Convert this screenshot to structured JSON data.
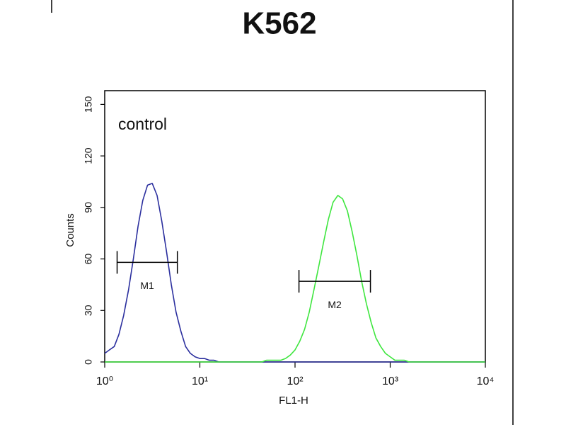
{
  "chart_data": {
    "type": "line",
    "title": "K562",
    "annotation": "control",
    "xlabel": "FL1-H",
    "ylabel": "Counts",
    "xscale": "log",
    "xlim": [
      1,
      10000
    ],
    "xticks": [
      {
        "value": 1,
        "label": "10⁰"
      },
      {
        "value": 10,
        "label": "10¹"
      },
      {
        "value": 100,
        "label": "10²"
      },
      {
        "value": 1000,
        "label": "10³"
      },
      {
        "value": 10000,
        "label": "10⁴"
      }
    ],
    "ylim": [
      0,
      158
    ],
    "yticks": [
      0,
      30,
      60,
      90,
      120,
      150
    ],
    "x": [
      1,
      1.12,
      1.26,
      1.41,
      1.58,
      1.78,
      2,
      2.24,
      2.51,
      2.82,
      3.16,
      3.55,
      3.98,
      4.47,
      5.01,
      5.62,
      6.31,
      7.08,
      7.94,
      8.91,
      10,
      11.2,
      12.6,
      14.1,
      15.8,
      17.8,
      20,
      22.4,
      25.1,
      28.2,
      31.6,
      35.5,
      39.8,
      44.7,
      50.1,
      56.2,
      63.1,
      70.8,
      79.4,
      89.1,
      100,
      112,
      126,
      141,
      158,
      178,
      200,
      224,
      251,
      282,
      316,
      355,
      398,
      447,
      501,
      562,
      631,
      708,
      794,
      891,
      1000,
      1120,
      1260,
      1410,
      1580,
      1780,
      2000,
      2240,
      2510,
      2820,
      3160,
      3550,
      3980,
      4470,
      5010,
      5620,
      6310,
      7080,
      7940,
      8910,
      10000
    ],
    "series": [
      {
        "color": "#2b2f9e",
        "values": [
          5,
          7,
          9,
          16,
          27,
          42,
          60,
          79,
          94,
          103,
          104,
          97,
          82,
          64,
          45,
          29,
          18,
          9,
          5,
          3,
          2,
          2,
          1,
          1,
          0,
          0,
          0,
          0,
          0,
          0,
          0,
          0,
          0,
          0,
          0,
          0,
          0,
          0,
          0,
          0,
          0,
          0,
          0,
          0,
          0,
          0,
          0,
          0,
          0,
          0,
          0,
          0,
          0,
          0,
          0,
          0,
          0,
          0,
          0,
          0,
          0,
          0,
          0,
          0,
          0,
          0,
          0,
          0,
          0,
          0,
          0,
          0,
          0,
          0,
          0,
          0,
          0,
          0,
          0,
          0,
          0
        ]
      },
      {
        "color": "#3fe63f",
        "values": [
          0,
          0,
          0,
          0,
          0,
          0,
          0,
          0,
          0,
          0,
          0,
          0,
          0,
          0,
          0,
          0,
          0,
          0,
          0,
          0,
          0,
          0,
          0,
          0,
          0,
          0,
          0,
          0,
          0,
          0,
          0,
          0,
          0,
          0,
          1,
          1,
          1,
          1,
          2,
          4,
          7,
          12,
          19,
          29,
          42,
          56,
          70,
          83,
          93,
          97,
          95,
          88,
          76,
          62,
          47,
          34,
          23,
          14,
          9,
          5,
          3,
          1,
          1,
          1,
          0,
          0,
          0,
          0,
          0,
          0,
          0,
          0,
          0,
          0,
          0,
          0,
          0,
          0,
          0,
          0,
          0
        ]
      }
    ],
    "gates": [
      {
        "label": "M1",
        "x": [
          1.35,
          5.8
        ],
        "y": 58
      },
      {
        "label": "M2",
        "x": [
          110,
          620
        ],
        "y": 47
      }
    ]
  }
}
